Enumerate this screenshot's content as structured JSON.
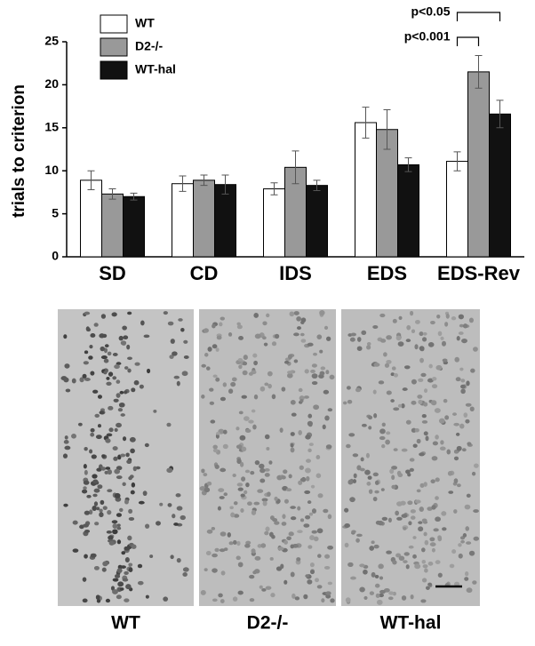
{
  "chart_data": {
    "type": "bar",
    "ylabel": "trials to criterion",
    "categories": [
      "SD",
      "CD",
      "IDS",
      "EDS",
      "EDS-Rev"
    ],
    "series": [
      {
        "name": "WT",
        "color": "#ffffff",
        "values": [
          8.9,
          8.5,
          7.9,
          15.6,
          11.1
        ],
        "errors": [
          1.1,
          0.9,
          0.7,
          1.8,
          1.1
        ]
      },
      {
        "name": "D2-/-",
        "color": "#999999",
        "values": [
          7.3,
          8.9,
          10.4,
          14.8,
          21.5
        ],
        "errors": [
          0.6,
          0.6,
          1.9,
          2.3,
          1.9
        ]
      },
      {
        "name": "WT-hal",
        "color": "#111111",
        "values": [
          7.0,
          8.4,
          8.3,
          10.7,
          16.6
        ],
        "errors": [
          0.4,
          1.1,
          0.6,
          0.8,
          1.6
        ]
      }
    ],
    "ylim": [
      0,
      25
    ],
    "yticks": [
      0,
      5,
      10,
      15,
      20,
      25
    ],
    "grid": false,
    "legend": "top-left",
    "annotations": [
      "p<0.05",
      "p<0.001"
    ]
  },
  "micrographs": {
    "labels": [
      "WT",
      "D2-/-",
      "WT-hal"
    ]
  }
}
